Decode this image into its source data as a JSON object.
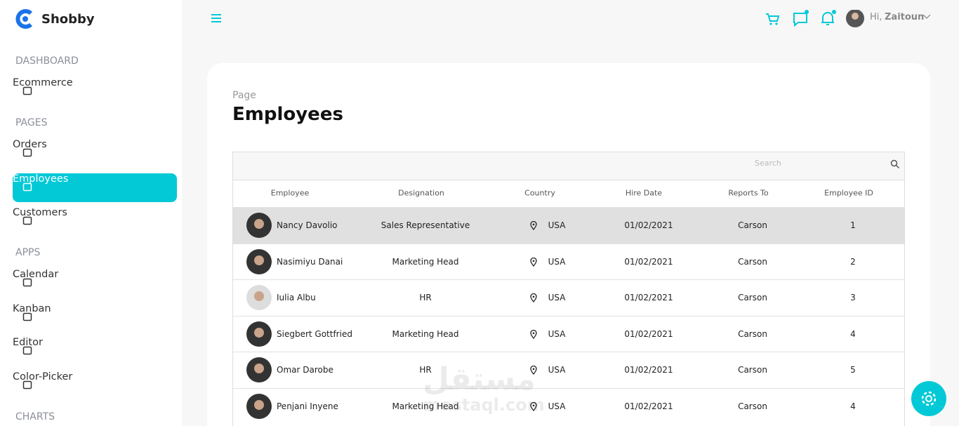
{
  "brand": "Shobby",
  "sidebar": {
    "sections": [
      {
        "title": "DASHBOARD",
        "items": [
          {
            "label": "Ecommerce"
          }
        ]
      },
      {
        "title": "PAGES",
        "items": [
          {
            "label": "Orders"
          },
          {
            "label": "Employees",
            "active": true
          },
          {
            "label": "Customers"
          }
        ]
      },
      {
        "title": "APPS",
        "items": [
          {
            "label": "Calendar"
          },
          {
            "label": "Kanban"
          },
          {
            "label": "Editor"
          },
          {
            "label": "Color-Picker"
          }
        ]
      },
      {
        "title": "CHARTS",
        "items": []
      }
    ]
  },
  "header": {
    "greeting": "Hi,",
    "user": "Zaitoun"
  },
  "page": {
    "subtitle": "Page",
    "title": "Employees"
  },
  "table": {
    "search_placeholder": "Search",
    "columns": [
      "Employee",
      "Designation",
      "Country",
      "Hire Date",
      "Reports To",
      "Employee ID"
    ],
    "rows": [
      [
        "Nancy Davolio",
        "Sales Representative",
        "USA",
        "01/02/2021",
        "Carson",
        1
      ],
      [
        "Nasimiyu Danai",
        "Marketing Head",
        "USA",
        "01/02/2021",
        "Carson",
        2
      ],
      [
        "Iulia Albu",
        "HR",
        "USA",
        "01/02/2021",
        "Carson",
        3
      ],
      [
        "Siegbert Gottfried",
        "Marketing Head",
        "USA",
        "01/02/2021",
        "Carson",
        4
      ],
      [
        "Omar Darobe",
        "HR",
        "USA",
        "01/02/2021",
        "Carson",
        5
      ],
      [
        "Penjani Inyene",
        "Marketing Head",
        "USA",
        "01/02/2021",
        "Carson",
        4
      ]
    ],
    "selected_row": 0
  },
  "watermark": {
    "arabic": "مستقل",
    "latin": "mostaql.com"
  }
}
